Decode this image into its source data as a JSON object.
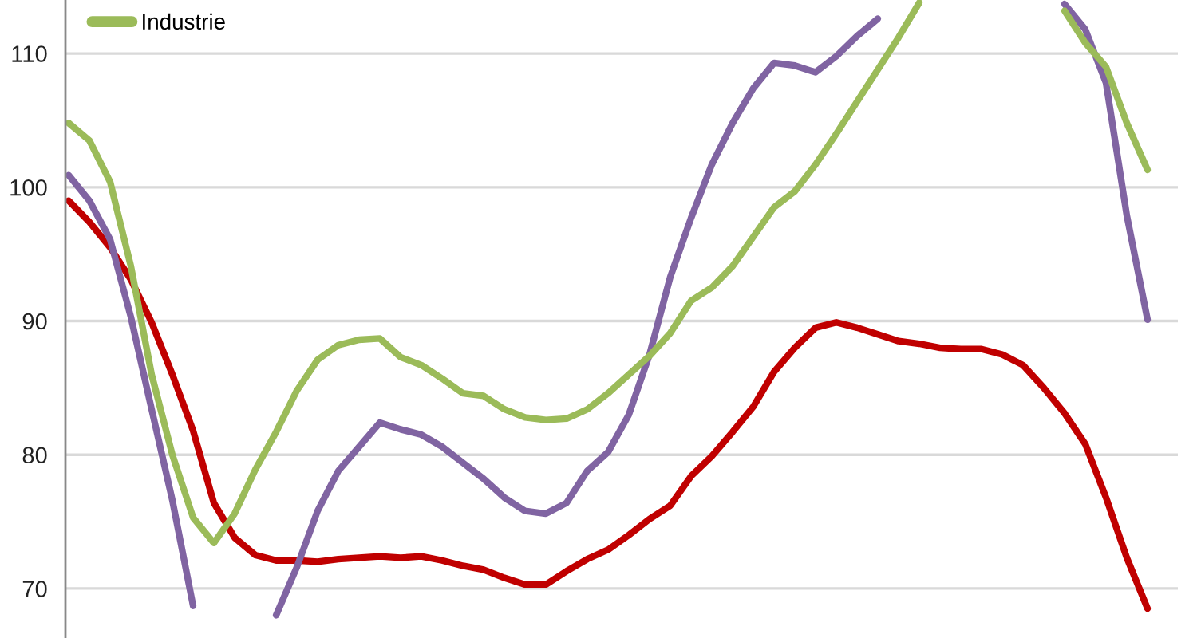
{
  "chart_data": {
    "type": "line",
    "categories": [
      null,
      null,
      null,
      null,
      null,
      null,
      null,
      null,
      null,
      null,
      null,
      null,
      null,
      null,
      null,
      null,
      null,
      null,
      null,
      null,
      null,
      null,
      null,
      null,
      null,
      null,
      null,
      null,
      null,
      null,
      null,
      null,
      null,
      null,
      null,
      null,
      null,
      null,
      null,
      null,
      null,
      null,
      null,
      null,
      null,
      null,
      null,
      null,
      null,
      null,
      null,
      null,
      null
    ],
    "series": [
      {
        "color": "#c00000",
        "values": [
          99.0,
          97.4,
          95.5,
          93.1,
          89.9,
          86.0,
          81.8,
          76.4,
          73.8,
          72.5,
          72.1,
          72.1,
          72.0,
          72.2,
          72.3,
          72.4,
          72.3,
          72.4,
          72.1,
          71.7,
          71.4,
          70.8,
          70.3,
          70.3,
          71.3,
          72.2,
          72.9,
          74.0,
          75.2,
          76.2,
          78.4,
          79.9,
          81.7,
          83.6,
          86.2,
          88.0,
          89.5,
          89.9,
          89.5,
          89.0,
          88.5,
          88.3,
          88.0,
          87.9,
          87.9,
          87.5,
          86.7,
          85.0,
          83.1,
          80.8,
          76.8,
          72.3,
          68.5
        ]
      },
      {
        "color": "#8064a2",
        "values": [
          100.9,
          99.0,
          96.1,
          90.3,
          83.4,
          76.6,
          68.7,
          null,
          null,
          null,
          68.0,
          71.6,
          75.8,
          78.8,
          80.6,
          82.4,
          81.9,
          81.5,
          80.6,
          79.4,
          78.2,
          76.8,
          75.8,
          75.6,
          76.4,
          78.8,
          80.2,
          83.0,
          87.5,
          93.3,
          97.7,
          101.7,
          104.8,
          107.4,
          109.3,
          109.1,
          108.6,
          109.8,
          111.3,
          112.6,
          null,
          null,
          null,
          null,
          null,
          null,
          null,
          null,
          113.7,
          111.8,
          107.8,
          97.9,
          90.1
        ]
      },
      {
        "name": "Industrie",
        "color": "#9bbb59",
        "values": [
          104.8,
          103.5,
          100.4,
          94.1,
          86.0,
          80.0,
          75.3,
          73.4,
          75.6,
          78.9,
          81.7,
          84.8,
          87.1,
          88.2,
          88.6,
          88.7,
          87.3,
          86.7,
          85.7,
          84.6,
          84.4,
          83.4,
          82.8,
          82.6,
          82.7,
          83.4,
          84.6,
          86.0,
          87.4,
          89.1,
          91.5,
          92.5,
          94.1,
          96.3,
          98.5,
          99.7,
          101.7,
          104.0,
          106.4,
          108.8,
          111.2,
          113.8,
          null,
          null,
          null,
          null,
          null,
          null,
          113.2,
          110.8,
          109.0,
          104.8,
          101.3
        ]
      }
    ],
    "ylim": [
      66.3,
      114
    ],
    "yticks": [
      70,
      80,
      90,
      100,
      110
    ],
    "grid": "y",
    "legend": "top left",
    "tick_labels": "y",
    "line_style": "solid"
  }
}
